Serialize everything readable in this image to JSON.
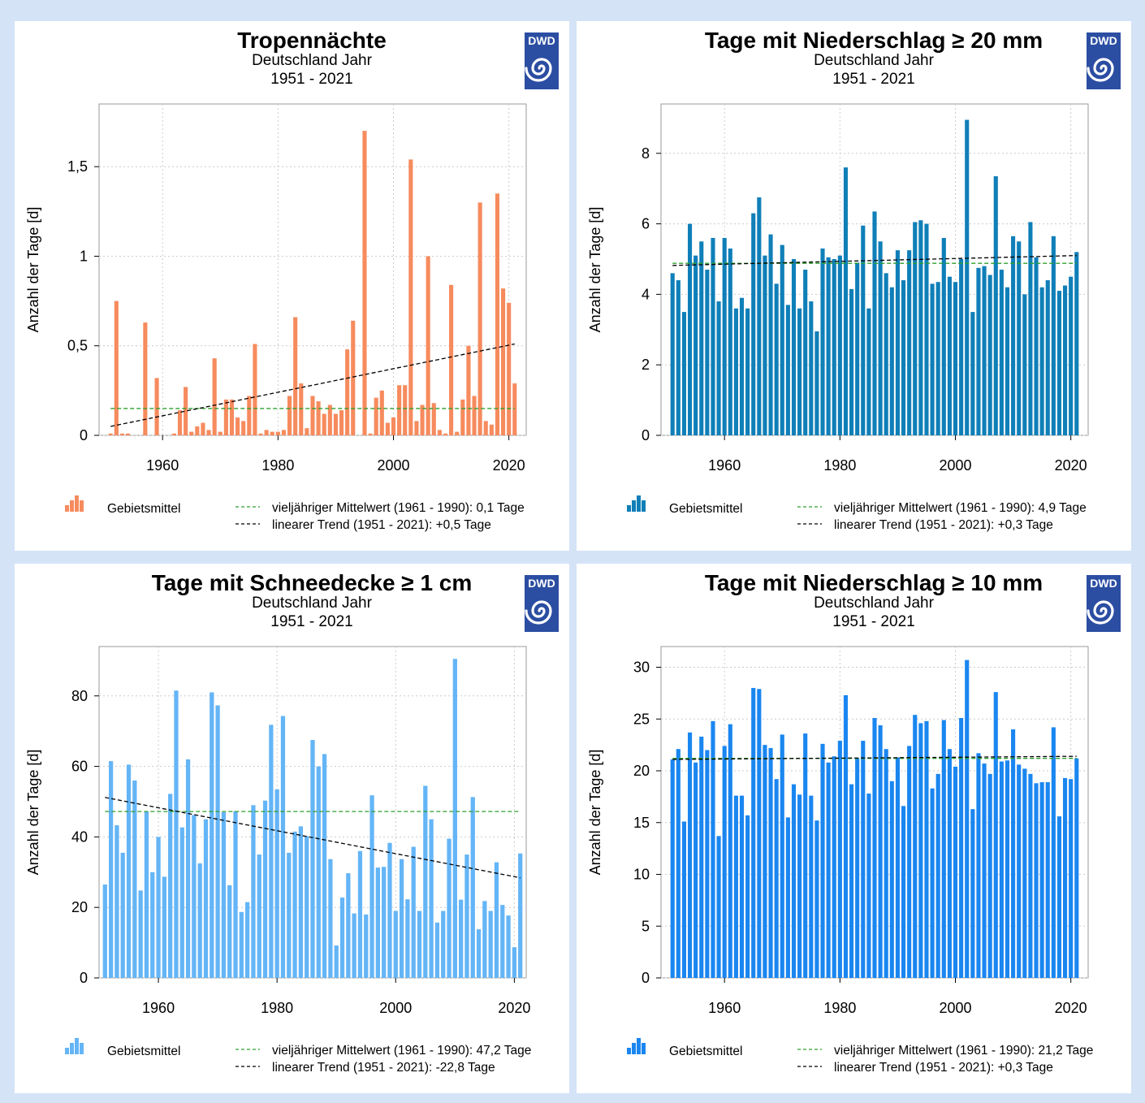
{
  "colors": {
    "background": "#d5e3f7",
    "mean_line": "#2ca02c",
    "trend_line": "#000000",
    "logo": "#2b4ea2"
  },
  "logo": {
    "text": "DWD"
  },
  "charts": [
    {
      "id": "tropennaechte",
      "title": "Tropennächte",
      "subtitle1": "Deutschland Jahr",
      "subtitle2": "1951 - 2021",
      "ylabel": "Anzahl der Tage [d]",
      "color": "#f68b5e",
      "legend_series": "Gebietsmittel",
      "legend_mean": "vieljähriger Mittelwert (1961 - 1990): 0,1 Tage",
      "legend_trend": "linearer Trend (1951 - 2021): +0,5 Tage"
    },
    {
      "id": "niederschlag20",
      "title": "Tage mit Niederschlag ≥ 20 mm",
      "subtitle1": "Deutschland Jahr",
      "subtitle2": "1951 - 2021",
      "ylabel": "Anzahl der Tage [d]",
      "color": "#0f7fb8",
      "legend_series": "Gebietsmittel",
      "legend_mean": "vieljähriger Mittelwert (1961 - 1990): 4,9 Tage",
      "legend_trend": "linearer Trend (1951 - 2021): +0,3 Tage"
    },
    {
      "id": "schneedecke",
      "title": "Tage mit Schneedecke ≥ 1 cm",
      "subtitle1": "Deutschland Jahr",
      "subtitle2": "1951 - 2021",
      "ylabel": "Anzahl der Tage [d]",
      "color": "#64b5f6",
      "legend_series": "Gebietsmittel",
      "legend_mean": "vieljähriger Mittelwert (1961 - 1990): 47,2 Tage",
      "legend_trend": "linearer Trend (1951 - 2021): -22,8 Tage"
    },
    {
      "id": "niederschlag10",
      "title": "Tage mit Niederschlag ≥ 10 mm",
      "subtitle1": "Deutschland Jahr",
      "subtitle2": "1951 - 2021",
      "ylabel": "Anzahl der Tage [d]",
      "color": "#1a86f0",
      "legend_series": "Gebietsmittel",
      "legend_mean": "vieljähriger Mittelwert (1961 - 1990): 21,2 Tage",
      "legend_trend": "linearer Trend (1951 - 2021): +0,3 Tage"
    }
  ],
  "chart_data": [
    {
      "type": "bar",
      "x_start": 1951,
      "xlim": [
        1949,
        2023
      ],
      "xticks": [
        1960,
        1980,
        2000,
        2020
      ],
      "xtick_labels": [
        "1960",
        "1980",
        "2000",
        "2020"
      ],
      "ylim": [
        0,
        1.85
      ],
      "yticks": [
        0,
        0.5,
        1,
        1.5
      ],
      "ytick_labels": [
        "0",
        "0,5",
        "1",
        "1,5"
      ],
      "grid": true,
      "mean": 0.15,
      "trend": [
        [
          1951,
          0.05
        ],
        [
          2021,
          0.51
        ]
      ],
      "values": [
        0.01,
        0.75,
        0.01,
        0.01,
        0,
        0,
        0.63,
        0,
        0.32,
        0,
        0,
        0.01,
        0.14,
        0.27,
        0.02,
        0.05,
        0.07,
        0.03,
        0.43,
        0.02,
        0.2,
        0.2,
        0.1,
        0.08,
        0.22,
        0.51,
        0.01,
        0.03,
        0.02,
        0.02,
        0.03,
        0.22,
        0.66,
        0.29,
        0.04,
        0.22,
        0.19,
        0.12,
        0.17,
        0.12,
        0.14,
        0.48,
        0.64,
        0,
        1.7,
        0.01,
        0.21,
        0.25,
        0.07,
        0.1,
        0.28,
        0.28,
        1.54,
        0.08,
        0.17,
        1.0,
        0.18,
        0.03,
        0.01,
        0.84,
        0.02,
        0.2,
        0.5,
        0.22,
        1.3,
        0.08,
        0.06,
        1.35,
        0.82,
        0.74,
        0.29
      ]
    },
    {
      "type": "bar",
      "x_start": 1951,
      "xlim": [
        1949,
        2023
      ],
      "xticks": [
        1960,
        1980,
        2000,
        2020
      ],
      "xtick_labels": [
        "1960",
        "1980",
        "2000",
        "2020"
      ],
      "ylim": [
        0,
        9.4
      ],
      "yticks": [
        0,
        2,
        4,
        6,
        8
      ],
      "ytick_labels": [
        "0",
        "2",
        "4",
        "6",
        "8"
      ],
      "grid": true,
      "mean": 4.88,
      "trend": [
        [
          1951,
          4.82
        ],
        [
          2021,
          5.1
        ]
      ],
      "values": [
        4.6,
        4.4,
        3.5,
        6.0,
        5.1,
        5.5,
        4.7,
        5.6,
        3.8,
        5.6,
        5.3,
        3.6,
        3.9,
        3.6,
        6.3,
        6.75,
        5.1,
        5.7,
        4.3,
        5.4,
        3.7,
        5.0,
        3.6,
        4.7,
        3.8,
        2.95,
        5.3,
        5.05,
        5.0,
        5.1,
        7.6,
        4.15,
        4.9,
        5.95,
        3.6,
        6.35,
        5.5,
        4.6,
        4.2,
        5.25,
        4.4,
        5.25,
        6.05,
        6.1,
        6.0,
        4.3,
        4.35,
        5.6,
        4.5,
        4.35,
        5.0,
        8.95,
        3.5,
        4.75,
        4.8,
        4.55,
        7.35,
        4.7,
        4.2,
        5.65,
        5.5,
        4.0,
        6.05,
        5.05,
        4.2,
        4.4,
        5.65,
        4.1,
        4.25,
        4.5,
        5.2
      ]
    },
    {
      "type": "bar",
      "x_start": 1951,
      "xlim": [
        1950,
        2022
      ],
      "xticks": [
        1960,
        1980,
        2000,
        2020
      ],
      "xtick_labels": [
        "1960",
        "1980",
        "2000",
        "2020"
      ],
      "ylim": [
        0,
        94
      ],
      "yticks": [
        0,
        20,
        40,
        60,
        80
      ],
      "ytick_labels": [
        "0",
        "20",
        "40",
        "60",
        "80"
      ],
      "grid": true,
      "mean": 47.2,
      "trend": [
        [
          1951,
          51.2
        ],
        [
          2021,
          28.4
        ]
      ],
      "values": [
        26.5,
        61.5,
        43.3,
        35.5,
        60.5,
        56.0,
        24.8,
        47.2,
        30.0,
        40.0,
        28.7,
        52.2,
        81.5,
        42.7,
        62.0,
        46.2,
        32.5,
        45.0,
        81.0,
        77.3,
        47.0,
        26.3,
        47.3,
        18.7,
        21.5,
        49.0,
        35.0,
        50.3,
        71.8,
        53.5,
        74.3,
        35.5,
        41.5,
        43.0,
        40.2,
        67.5,
        60.0,
        63.5,
        33.7,
        9.2,
        22.8,
        29.7,
        18.3,
        36.0,
        18.0,
        51.8,
        31.3,
        31.5,
        38.3,
        19.0,
        33.7,
        22.3,
        37.2,
        19.0,
        54.5,
        45.0,
        15.7,
        19.0,
        39.5,
        90.5,
        22.2,
        35.0,
        51.3,
        13.8,
        21.8,
        19.0,
        32.8,
        20.7,
        17.7,
        8.7,
        35.3
      ]
    },
    {
      "type": "bar",
      "x_start": 1951,
      "xlim": [
        1949,
        2023
      ],
      "xticks": [
        1960,
        1980,
        2000,
        2020
      ],
      "xtick_labels": [
        "1960",
        "1980",
        "2000",
        "2020"
      ],
      "ylim": [
        0,
        32
      ],
      "yticks": [
        0,
        5,
        10,
        15,
        20,
        25,
        30
      ],
      "ytick_labels": [
        "0",
        "5",
        "10",
        "15",
        "20",
        "25",
        "30"
      ],
      "grid": true,
      "mean": 21.2,
      "trend": [
        [
          1951,
          21.1
        ],
        [
          2021,
          21.4
        ]
      ],
      "values": [
        21.1,
        22.1,
        15.1,
        23.7,
        20.8,
        23.3,
        22.0,
        24.8,
        13.7,
        22.4,
        24.5,
        17.6,
        17.6,
        15.7,
        28.0,
        27.9,
        22.5,
        22.2,
        19.2,
        23.5,
        15.5,
        18.7,
        17.7,
        23.6,
        17.6,
        15.2,
        22.6,
        20.8,
        21.4,
        22.9,
        27.3,
        18.7,
        21.2,
        22.9,
        17.8,
        25.1,
        24.4,
        22.1,
        19.0,
        21.3,
        16.6,
        22.4,
        25.4,
        24.6,
        24.8,
        18.3,
        19.7,
        24.9,
        22.1,
        20.4,
        25.1,
        30.7,
        16.3,
        21.7,
        20.7,
        19.7,
        27.6,
        20.9,
        21.0,
        24.0,
        20.6,
        20.2,
        19.7,
        18.8,
        18.9,
        18.9,
        24.2,
        15.6,
        19.3,
        19.2,
        21.2
      ]
    }
  ]
}
